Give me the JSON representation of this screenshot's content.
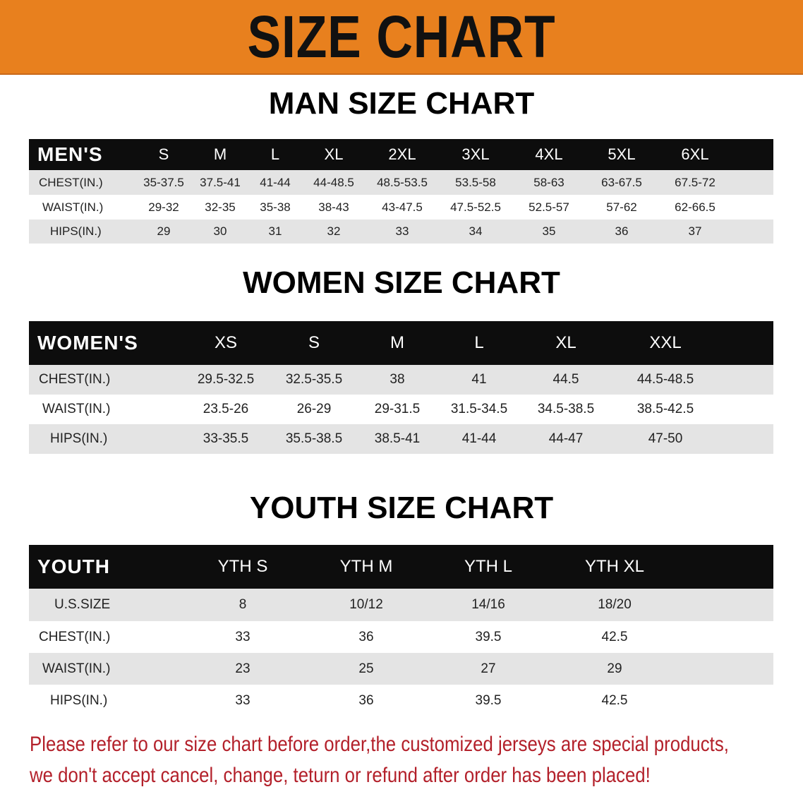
{
  "banner_title": "SIZE CHART",
  "colors": {
    "banner": "#e8801e",
    "header_row": "#0d0d0d",
    "note_text": "#b3202a"
  },
  "men": {
    "title": "MAN SIZE CHART",
    "header": [
      "MEN'S",
      "S",
      "M",
      "L",
      "XL",
      "2XL",
      "3XL",
      "4XL",
      "5XL",
      "6XL"
    ],
    "rows": [
      [
        "CHEST(IN.)",
        "35-37.5",
        "37.5-41",
        "41-44",
        "44-48.5",
        "48.5-53.5",
        "53.5-58",
        "58-63",
        "63-67.5",
        "67.5-72"
      ],
      [
        "WAIST(IN.)",
        "29-32",
        "32-35",
        "35-38",
        "38-43",
        "43-47.5",
        "47.5-52.5",
        "52.5-57",
        "57-62",
        "62-66.5"
      ],
      [
        "HIPS(IN.)",
        "29",
        "30",
        "31",
        "32",
        "33",
        "34",
        "35",
        "36",
        "37"
      ]
    ]
  },
  "women": {
    "title": "WOMEN SIZE CHART",
    "header": [
      "WOMEN'S",
      "XS",
      "S",
      "M",
      "L",
      "XL",
      "XXL"
    ],
    "rows": [
      [
        "CHEST(IN.)",
        "29.5-32.5",
        "32.5-35.5",
        "38",
        "41",
        "44.5",
        "44.5-48.5"
      ],
      [
        "WAIST(IN.)",
        "23.5-26",
        "26-29",
        "29-31.5",
        "31.5-34.5",
        "34.5-38.5",
        "38.5-42.5"
      ],
      [
        "HIPS(IN.)",
        "33-35.5",
        "35.5-38.5",
        "38.5-41",
        "41-44",
        "44-47",
        "47-50"
      ]
    ]
  },
  "youth": {
    "title": "YOUTH SIZE CHART",
    "header": [
      "YOUTH",
      "YTH S",
      "YTH M",
      "YTH L",
      "YTH XL"
    ],
    "rows": [
      [
        "U.S.SIZE",
        "8",
        "10/12",
        "14/16",
        "18/20"
      ],
      [
        "CHEST(IN.)",
        "33",
        "36",
        "39.5",
        "42.5"
      ],
      [
        "WAIST(IN.)",
        "23",
        "25",
        "27",
        "29"
      ],
      [
        "HIPS(IN.)",
        "33",
        "36",
        "39.5",
        "42.5"
      ]
    ]
  },
  "note": {
    "line1": "Please refer to our size chart before order,the customized jerseys are special products,",
    "line2": "we don't accept cancel, change, teturn or refund after order has been placed!"
  }
}
